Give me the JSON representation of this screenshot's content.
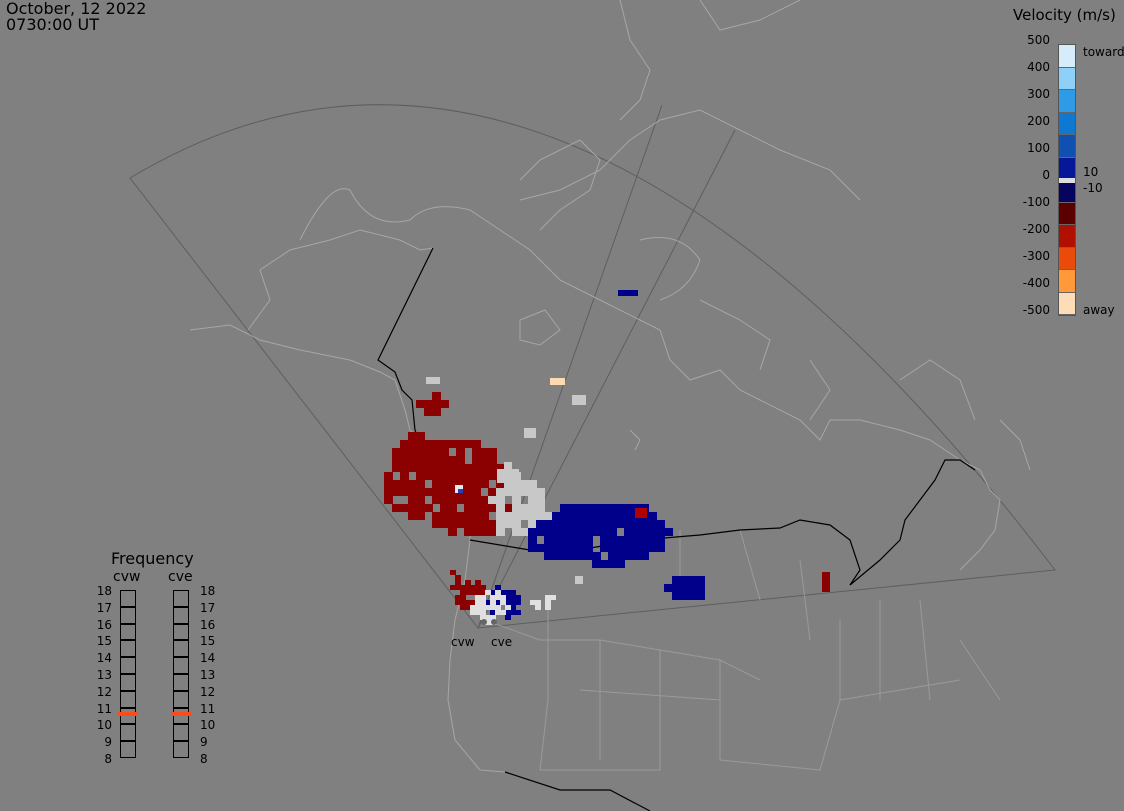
{
  "header": {
    "date": "October, 12 2022",
    "time": "0730:00 UT"
  },
  "colorbar": {
    "title": "Velocity (m/s)",
    "ticks": [
      "500",
      "400",
      "300",
      "200",
      "100",
      "0",
      "-100",
      "-200",
      "-300",
      "-400",
      "-500"
    ],
    "side_labels": {
      "toward": "toward",
      "pos": "10",
      "neg": "-10",
      "away": "away"
    },
    "colors": [
      "#d6ecfb",
      "#8fd0f8",
      "#2f9be6",
      "#0f78d0",
      "#1050b0",
      "#05189a",
      "#07045f",
      "#5a0000",
      "#b01000",
      "#ea4a0a",
      "#ff9a3a",
      "#ffdcb8"
    ]
  },
  "frequency": {
    "title": "Frequency",
    "radars": [
      "cvw",
      "cve"
    ],
    "levels": [
      "18",
      "17",
      "16",
      "15",
      "14",
      "13",
      "12",
      "11",
      "10",
      "9",
      "8"
    ],
    "current_mhz": 10.6,
    "marker_color": "#ff4a1a"
  },
  "radar_sites": [
    "cvw",
    "cve"
  ],
  "palette": {
    "red": "#8b0000",
    "blue": "#00008b",
    "grey": "#c8c8c8",
    "border": "#000000",
    "coast": "#aaaaaa",
    "fov": "#5a5a5a"
  }
}
